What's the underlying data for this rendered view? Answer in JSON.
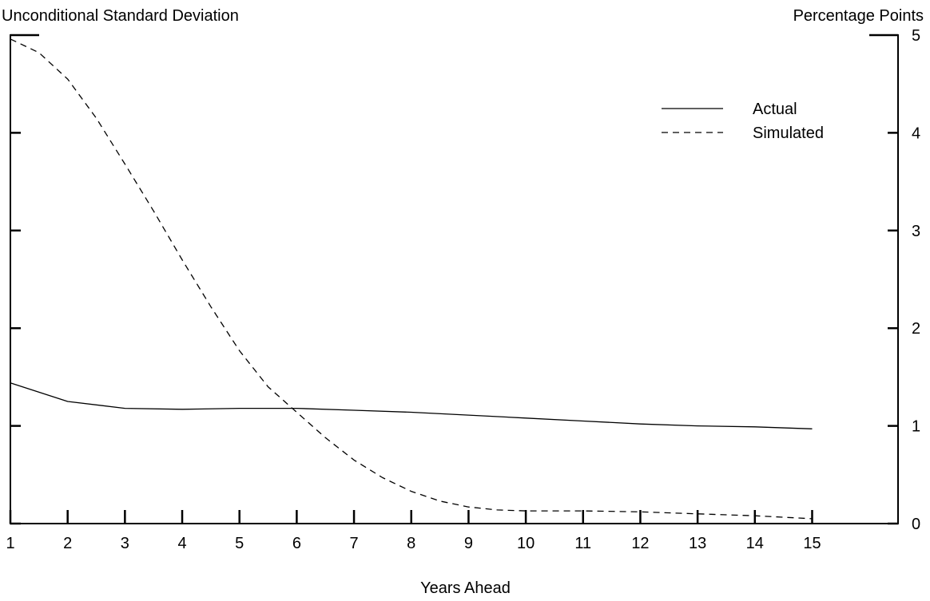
{
  "chart_data": {
    "type": "line",
    "title_left": "Unconditional Standard Deviation",
    "title_right": "Percentage Points",
    "xlabel": "Years Ahead",
    "x": [
      1,
      2,
      3,
      4,
      5,
      6,
      7,
      8,
      9,
      10,
      11,
      12,
      13,
      14,
      15
    ],
    "x_ticks": [
      "1",
      "2",
      "3",
      "4",
      "5",
      "6",
      "7",
      "8",
      "9",
      "10",
      "11",
      "12",
      "13",
      "14",
      "15"
    ],
    "xlim": [
      1,
      16.5
    ],
    "ylim": [
      0,
      5
    ],
    "y_ticks": [
      0,
      1,
      2,
      3,
      4,
      5
    ],
    "y_tick_labels": [
      "0",
      "1",
      "2",
      "3",
      "4",
      "5"
    ],
    "grid": false,
    "legend_position": "top-right",
    "series": [
      {
        "name": "Actual",
        "style": "solid",
        "color": "#000000",
        "x": [
          1,
          2,
          3,
          4,
          5,
          6,
          7,
          8,
          9,
          10,
          11,
          12,
          13,
          14,
          15
        ],
        "values": [
          1.44,
          1.25,
          1.18,
          1.17,
          1.18,
          1.18,
          1.16,
          1.14,
          1.11,
          1.08,
          1.05,
          1.02,
          1.0,
          0.99,
          0.97
        ]
      },
      {
        "name": "Simulated",
        "style": "dashed",
        "color": "#000000",
        "x": [
          1,
          1.5,
          2,
          2.5,
          3,
          3.5,
          4,
          4.5,
          5,
          5.5,
          6,
          6.5,
          7,
          7.5,
          8,
          8.5,
          9,
          9.5,
          10,
          11,
          12,
          13,
          14,
          15
        ],
        "values": [
          4.96,
          4.82,
          4.55,
          4.15,
          3.68,
          3.2,
          2.7,
          2.22,
          1.77,
          1.4,
          1.14,
          0.88,
          0.65,
          0.47,
          0.33,
          0.23,
          0.17,
          0.14,
          0.13,
          0.13,
          0.12,
          0.1,
          0.08,
          0.05
        ]
      }
    ]
  }
}
